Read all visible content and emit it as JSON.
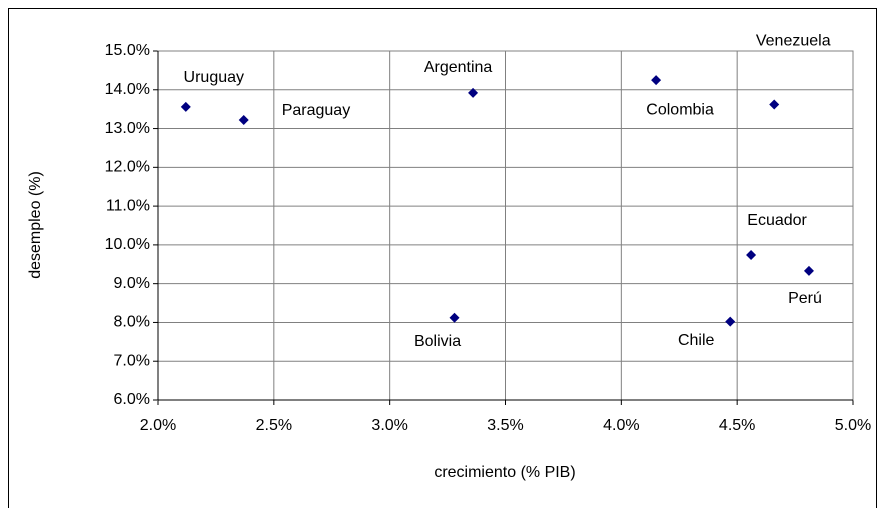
{
  "chart_data": {
    "type": "scatter",
    "x_label": "crecimiento (% PIB)",
    "y_label": "desempleo (%)",
    "labels": [
      "Uruguay",
      "Paraguay",
      "Argentina",
      "Bolivia",
      "Colombia",
      "Venezuela",
      "Ecuador",
      "Perú",
      "Chile"
    ],
    "x": [
      2.12,
      2.37,
      3.36,
      3.28,
      4.15,
      4.66,
      4.56,
      4.81,
      4.47
    ],
    "values": [
      13.56,
      13.22,
      13.92,
      8.12,
      14.25,
      13.62,
      9.74,
      9.33,
      8.02
    ],
    "color": "#000080",
    "xlim": [
      2.0,
      5.0
    ],
    "ylim": [
      6.0,
      15.0
    ],
    "xticks": [
      {
        "value": 2.0,
        "label": "2.0%"
      },
      {
        "value": 2.5,
        "label": "2.5%"
      },
      {
        "value": 3.0,
        "label": "3.0%"
      },
      {
        "value": 3.5,
        "label": "3.5%"
      },
      {
        "value": 4.0,
        "label": "4.0%"
      },
      {
        "value": 4.5,
        "label": "4.5%"
      },
      {
        "value": 5.0,
        "label": "5.0%"
      }
    ],
    "yticks": [
      {
        "value": 6.0,
        "label": "6.0%"
      },
      {
        "value": 7.0,
        "label": "7.0%"
      },
      {
        "value": 8.0,
        "label": "8.0%"
      },
      {
        "value": 9.0,
        "label": "9.0%"
      },
      {
        "value": 10.0,
        "label": "10.0%"
      },
      {
        "value": 11.0,
        "label": "11.0%"
      },
      {
        "value": 12.0,
        "label": "12.0%"
      },
      {
        "value": 13.0,
        "label": "13.0%"
      },
      {
        "value": 14.0,
        "label": "14.0%"
      },
      {
        "value": 15.0,
        "label": "15.0%"
      }
    ],
    "grid": true
  }
}
